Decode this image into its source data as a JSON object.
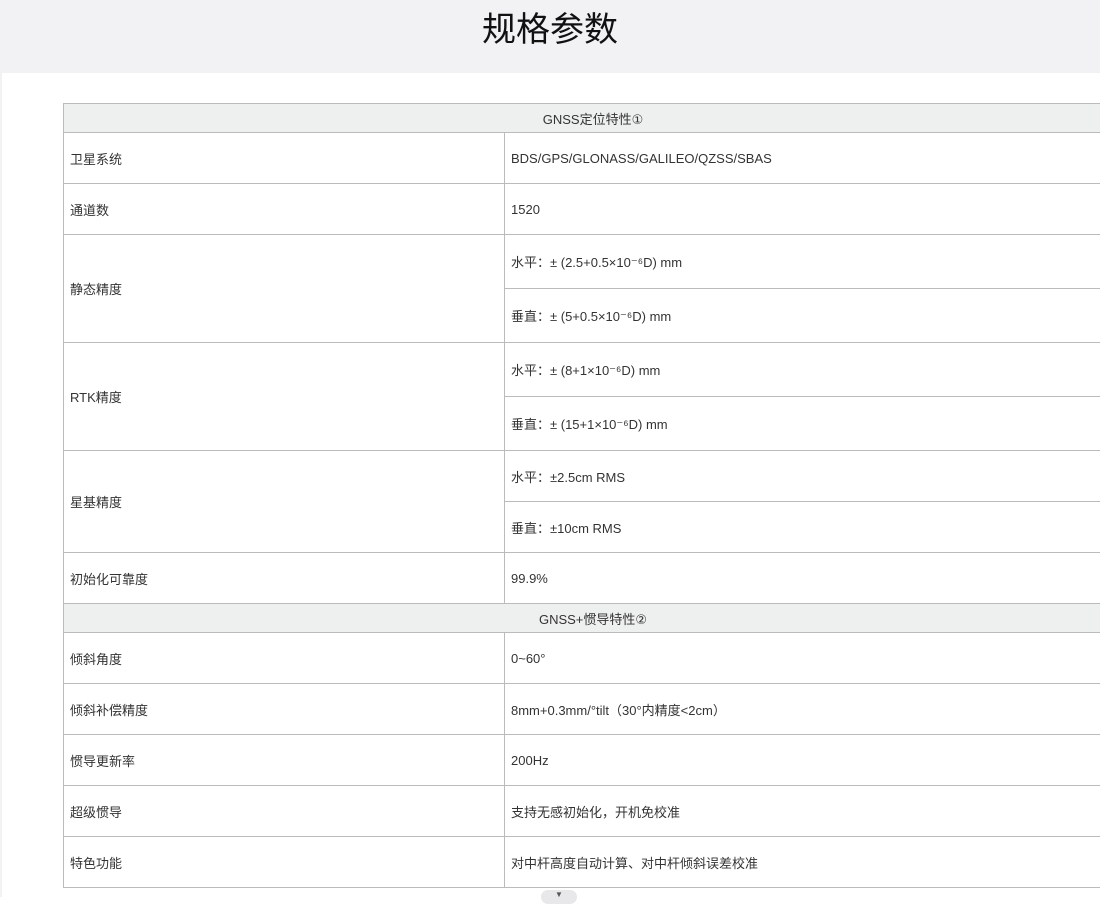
{
  "page_title": "规格参数",
  "sections": [
    {
      "title": "GNSS定位特性①",
      "rows": [
        {
          "label": "卫星系统",
          "values": [
            "BDS/GPS/GLONASS/GALILEO/QZSS/SBAS"
          ]
        },
        {
          "label": "通道数",
          "values": [
            "1520"
          ]
        },
        {
          "label": "静态精度",
          "values": [
            "水平：± (2.5+0.5×10⁻⁶D) mm",
            "垂直：± (5+0.5×10⁻⁶D) mm"
          ]
        },
        {
          "label": "RTK精度",
          "values": [
            "水平：± (8+1×10⁻⁶D) mm",
            "垂直：± (15+1×10⁻⁶D) mm"
          ]
        },
        {
          "label": "星基精度",
          "values": [
            "水平：±2.5cm RMS",
            "垂直：±10cm RMS"
          ]
        },
        {
          "label": "初始化可靠度",
          "values": [
            "99.9%"
          ]
        }
      ]
    },
    {
      "title": "GNSS+惯导特性②",
      "rows": [
        {
          "label": "倾斜角度",
          "values": [
            "0~60°"
          ]
        },
        {
          "label": "倾斜补偿精度",
          "values": [
            "8mm+0.3mm/°tilt（30°内精度<2cm）"
          ]
        },
        {
          "label": "惯导更新率",
          "values": [
            "200Hz"
          ]
        },
        {
          "label": "超级惯导",
          "values": [
            "支持无感初始化，开机免校准"
          ]
        },
        {
          "label": "特色功能",
          "values": [
            "对中杆高度自动计算、对中杆倾斜误差校准"
          ]
        }
      ]
    }
  ],
  "scroll_indicator_icon": "chevron-down-icon"
}
